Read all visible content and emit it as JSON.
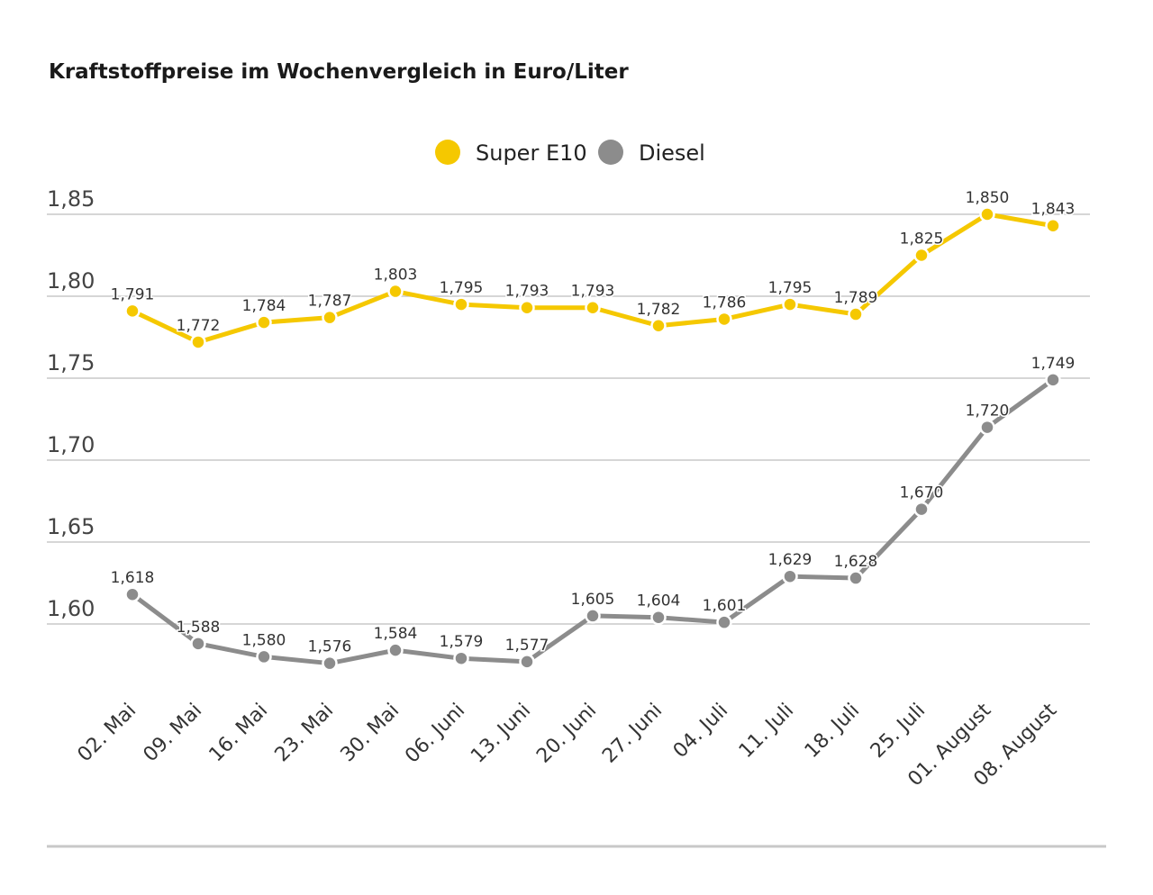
{
  "chart_data": {
    "type": "line",
    "title": "Kraftstoffpreise im Wochenvergleich in Euro/Liter",
    "categories": [
      "02. Mai",
      "09. Mai",
      "16. Mai",
      "23. Mai",
      "30. Mai",
      "06. Juni",
      "13. Juni",
      "20. Juni",
      "27. Juni",
      "04. Juli",
      "11. Juli",
      "18. Juli",
      "25. Juli",
      "01. August",
      "08. August"
    ],
    "series": [
      {
        "name": "Super E10",
        "color": "#f5c800",
        "values": [
          1.791,
          1.772,
          1.784,
          1.787,
          1.803,
          1.795,
          1.793,
          1.793,
          1.782,
          1.786,
          1.795,
          1.789,
          1.825,
          1.85,
          1.843
        ],
        "labels": [
          "1,791",
          "1,772",
          "1,784",
          "1,787",
          "1,803",
          "1,795",
          "1,793",
          "1,793",
          "1,782",
          "1,786",
          "1,795",
          "1,789",
          "1,825",
          "1,850",
          "1,843"
        ]
      },
      {
        "name": "Diesel",
        "color": "#8c8c8c",
        "values": [
          1.618,
          1.588,
          1.58,
          1.576,
          1.584,
          1.579,
          1.577,
          1.605,
          1.604,
          1.601,
          1.629,
          1.628,
          1.67,
          1.72,
          1.749
        ],
        "labels": [
          "1,618",
          "1,588",
          "1,580",
          "1,576",
          "1,584",
          "1,579",
          "1,577",
          "1,605",
          "1,604",
          "1,601",
          "1,629",
          "1,628",
          "1,670",
          "1,720",
          "1,749"
        ]
      }
    ],
    "y_ticks": [
      1.85,
      1.8,
      1.75,
      1.7,
      1.65,
      1.6
    ],
    "y_tick_labels": [
      "1,85",
      "1,80",
      "1,75",
      "1,70",
      "1,65",
      "1,60"
    ],
    "ylim": [
      1.6,
      1.85
    ],
    "grid": true,
    "legend_position": "top-center"
  }
}
